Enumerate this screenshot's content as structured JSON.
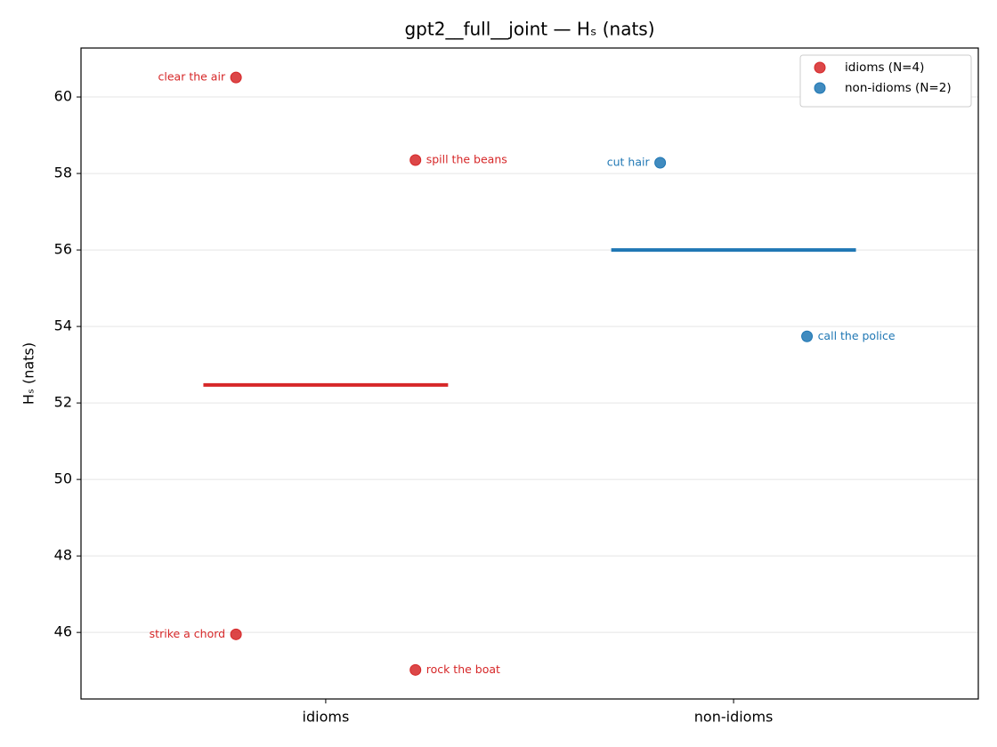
{
  "chart_data": {
    "type": "scatter",
    "title": "gpt2__full__joint — Hₛ (nats)",
    "ylabel": "Hₛ (nats)",
    "xlim": [
      -0.6,
      1.6
    ],
    "xticks": [
      {
        "value": 0,
        "label": "idioms"
      },
      {
        "value": 1,
        "label": "non-idioms"
      }
    ],
    "ylim": [
      44.26,
      61.28
    ],
    "yticks": [
      46,
      48,
      50,
      52,
      54,
      56,
      58,
      60
    ],
    "grid": true,
    "legend": "upper right",
    "series": [
      {
        "name": "idioms (N=4)",
        "color": "#d62728",
        "x": [
          -0.22,
          0.22,
          -0.22,
          0.22
        ],
        "values": [
          60.51,
          58.35,
          45.95,
          45.02
        ],
        "point_labels": [
          "clear the air",
          "spill the beans",
          "strike a chord",
          "rock the boat"
        ],
        "mean": 52.47
      },
      {
        "name": "non-idioms (N=2)",
        "color": "#1f77b4",
        "x": [
          0.82,
          1.18
        ],
        "values": [
          58.28,
          53.74
        ],
        "point_labels": [
          "cut hair",
          "call the police"
        ],
        "mean": 56.0
      }
    ]
  }
}
